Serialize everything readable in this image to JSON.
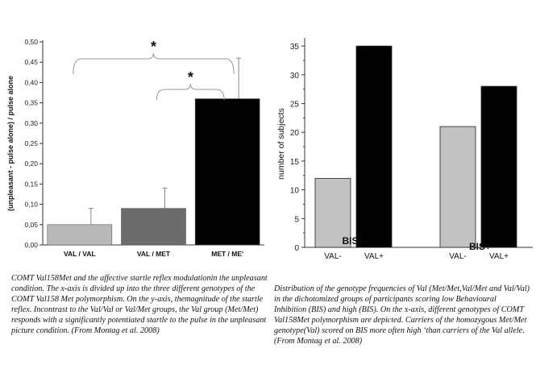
{
  "chart_data": [
    {
      "type": "bar",
      "ylabel": "(unpleasant - pulse alone) / pulse alone",
      "categories": [
        "VAL / VAL",
        "VAL / MET",
        "MET / ME'"
      ],
      "values": [
        0.05,
        0.09,
        0.36
      ],
      "error_upper": [
        0.09,
        0.14,
        0.46
      ],
      "colors": [
        "#b9b9b9",
        "#6c6c6c",
        "#000000"
      ],
      "ylim": [
        0,
        0.5
      ],
      "yticks": [
        "0,00",
        "0,05",
        "0,10",
        "0,15",
        "0,20",
        "0,25",
        "0,30",
        "0,35",
        "0,40",
        "0,45",
        "0,50"
      ],
      "significance_markers": [
        "*",
        "*"
      ]
    },
    {
      "type": "bar",
      "ylabel": "number of subjects",
      "groups": [
        "BIS-",
        "BIS+"
      ],
      "categories": [
        "VAL-",
        "VAL+",
        "VAL-",
        "VAL+"
      ],
      "values": [
        12,
        35,
        21,
        28
      ],
      "colors": [
        "#c2c2c2",
        "#000000",
        "#c2c2c2",
        "#000000"
      ],
      "ylim": [
        0,
        36
      ],
      "yticks": [
        "0",
        "5",
        "10",
        "15",
        "20",
        "25",
        "30",
        "35"
      ]
    }
  ],
  "captions": {
    "left": "COMT Val158Met and the affective startle reflex modulationin the unpleasant condition. The x-axis is divided up into the three different genotypes of the COMT Val158 Met polymorphism. On the y-axis, themagnitude of the startle reflex. Incontrast to the Val/Val or Val/Met groups, the Val group (Met/Met) responds with a significantly potentiated startle to the pulse in the unpleasant picture condition. (From Montag et al. 2008)",
    "right": "Distribution of the genotype frequencies of Val (Met/Met,Val/Met and Val/Val) in the dichotomized groups of participants scoring low Behavioural Inhibition (BIS) and high (BIS). On the x-axis, different genotypes of COMT Val158Met polymorphism are depicted. Carriers of the homozygous Met/Met genotype(Val) scored on BIS more often high ‘than carriers of the Val allele. (From Montag et al. 2008)"
  }
}
